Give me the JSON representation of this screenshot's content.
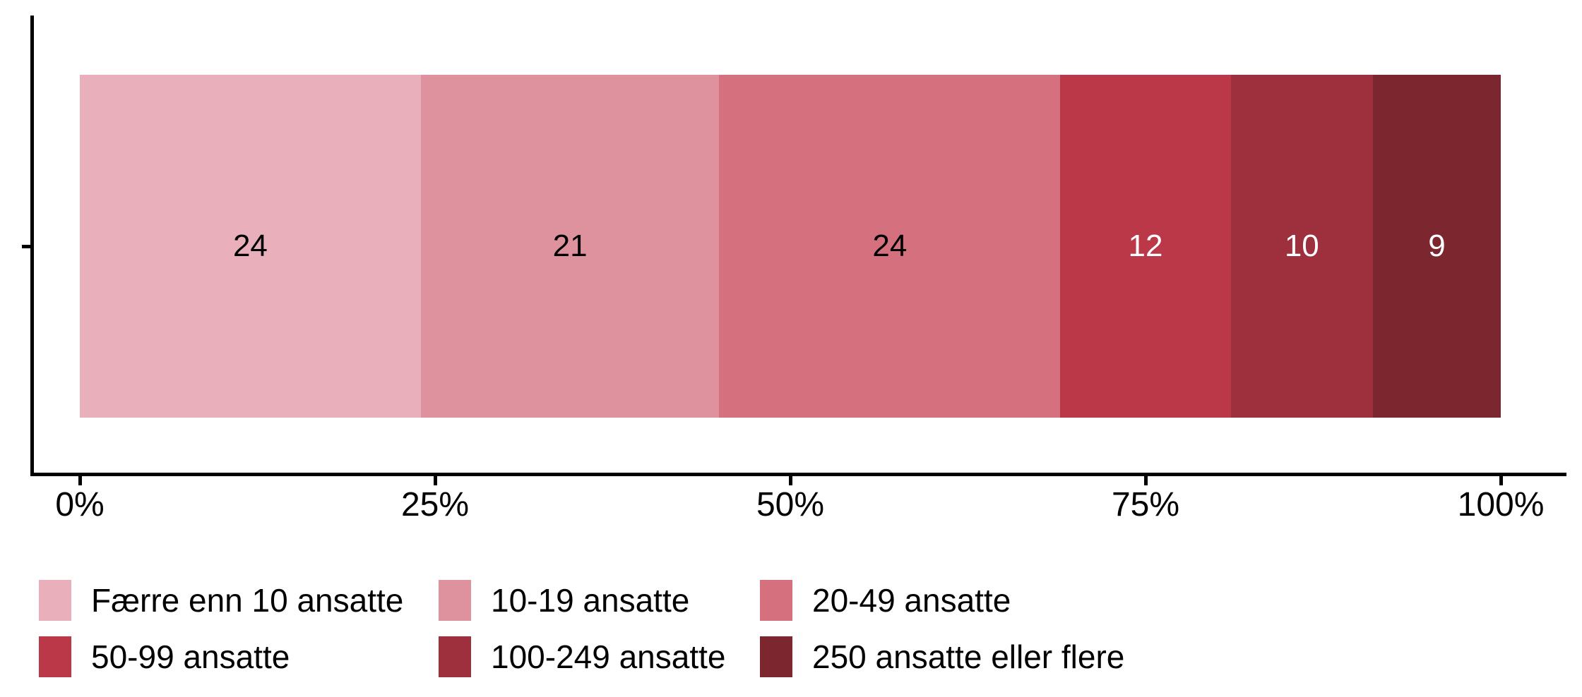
{
  "chart_data": {
    "type": "bar",
    "variant": "horizontal-stacked-percent",
    "title": "",
    "xlabel": "",
    "ylabel": "",
    "grid": false,
    "legend_position": "bottom",
    "legend_rows": 2,
    "legend_columns": 3,
    "x_range": [
      0,
      100
    ],
    "x_ticks": [
      {
        "label": "0%",
        "value": 0
      },
      {
        "label": "25%",
        "value": 25
      },
      {
        "label": "50%",
        "value": 50
      },
      {
        "label": "75%",
        "value": 75
      },
      {
        "label": "100%",
        "value": 100
      }
    ],
    "series": [
      {
        "name": "Færre enn 10 ansatte",
        "value": 24,
        "color": "#E9AFBA",
        "label": "24",
        "label_color": "#000000"
      },
      {
        "name": "10-19 ansatte",
        "value": 21,
        "color": "#DD929E",
        "label": "21",
        "label_color": "#000000"
      },
      {
        "name": "20-49 ansatte",
        "value": 24,
        "color": "#D5717F",
        "label": "24",
        "label_color": "#000000"
      },
      {
        "name": "50-99 ansatte",
        "value": 12,
        "color": "#BB3849",
        "label": "12",
        "label_color": "#FFFFFF"
      },
      {
        "name": "100-249 ansatte",
        "value": 10,
        "color": "#9E303E",
        "label": "10",
        "label_color": "#FFFFFF"
      },
      {
        "name": "250 ansatte eller flere",
        "value": 9,
        "color": "#7C2630",
        "label": "9",
        "label_color": "#FFFFFF"
      }
    ]
  },
  "axis_color": "#000000"
}
